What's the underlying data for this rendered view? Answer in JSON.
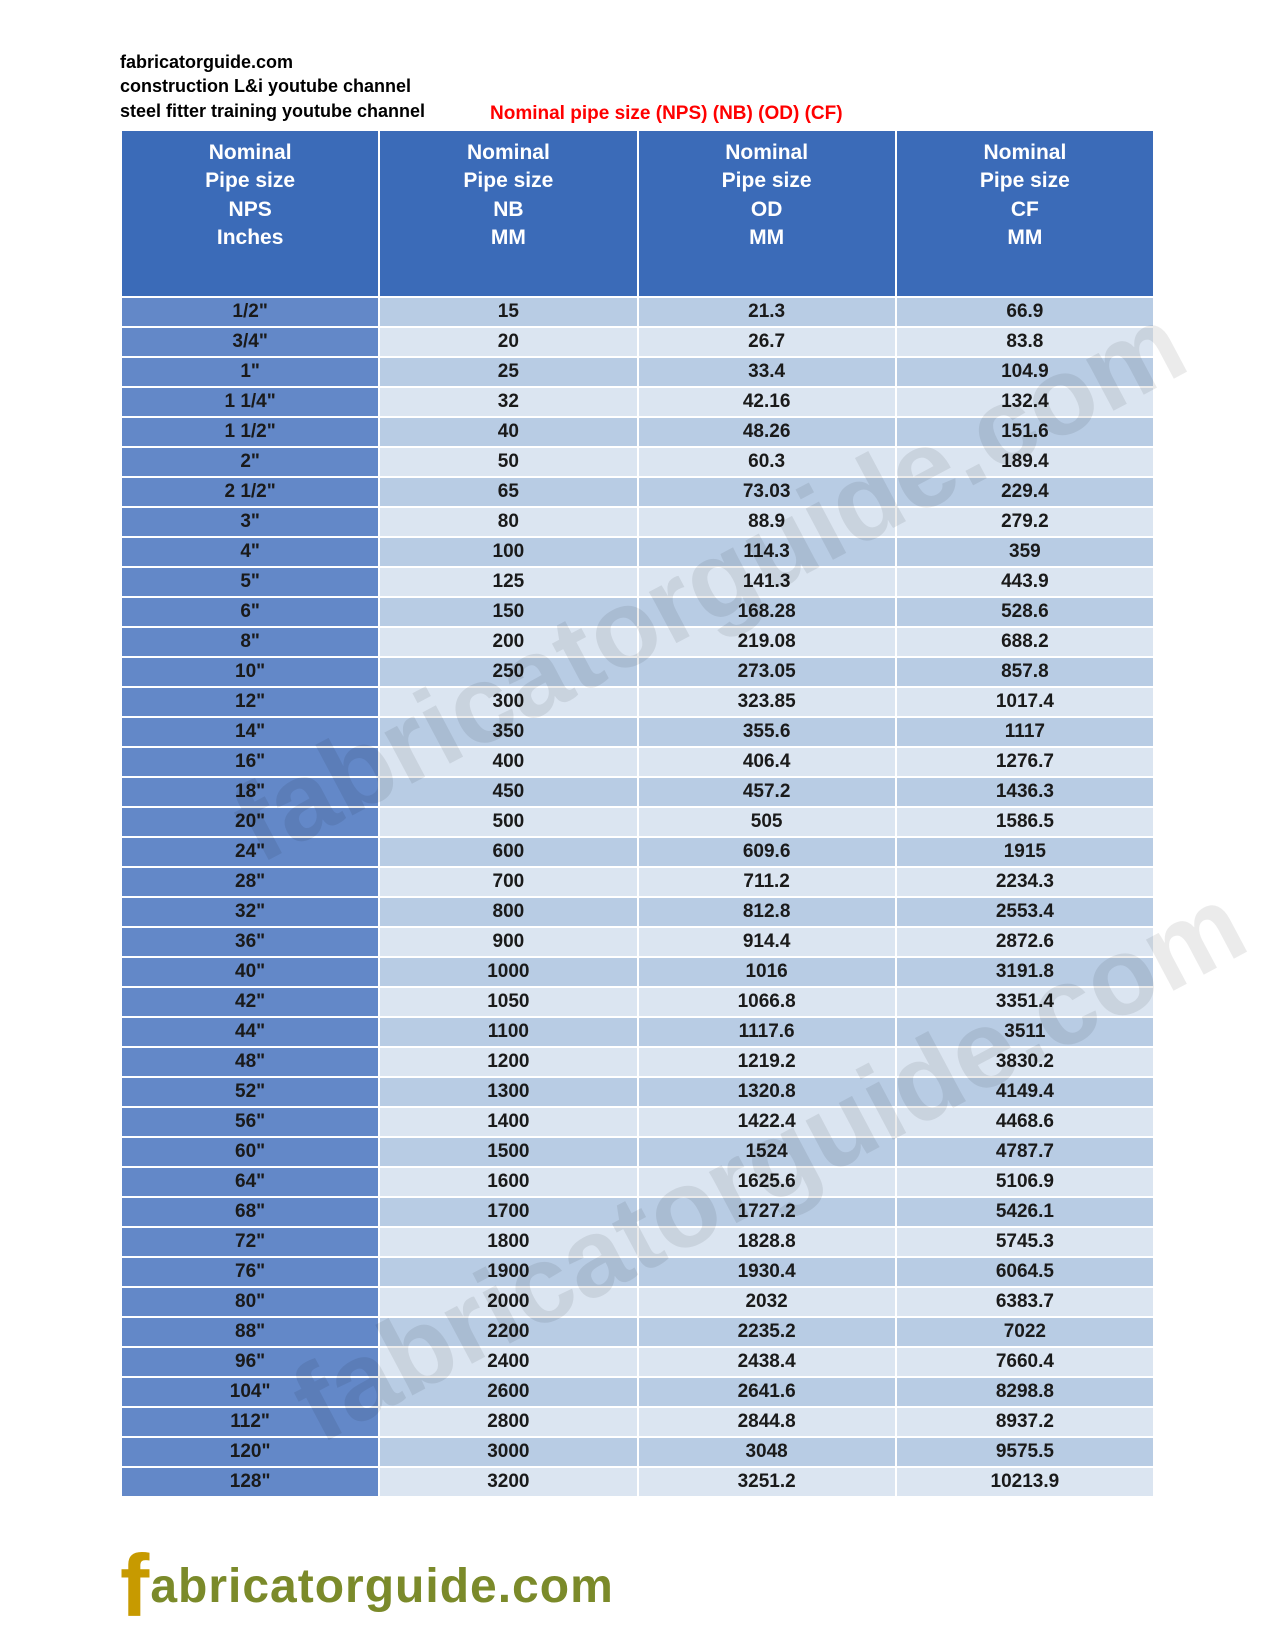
{
  "header": {
    "line1": "fabricatorguide.com",
    "line2": "construction L&i youtube channel",
    "line3": "steel fitter training youtube channel"
  },
  "title_red": "Nominal pipe size (NPS)  (NB)  (OD)  (CF)",
  "watermark_text": "fabricatorguide.com",
  "footer_logo": {
    "f": "f",
    "rest": "abricatorguide.com"
  },
  "table": {
    "columns": [
      {
        "l1": "Nominal",
        "l2": "Pipe size",
        "l3": "NPS",
        "l4": "Inches"
      },
      {
        "l1": "Nominal",
        "l2": "Pipe size",
        "l3": "NB",
        "l4": "MM"
      },
      {
        "l1": "Nominal",
        "l2": "Pipe size",
        "l3": "OD",
        "l4": "MM"
      },
      {
        "l1": "Nominal",
        "l2": "Pipe size",
        "l3": "CF",
        "l4": "MM"
      }
    ],
    "rows": [
      [
        "1/2\"",
        "15",
        "21.3",
        "66.9"
      ],
      [
        "3/4\"",
        "20",
        "26.7",
        "83.8"
      ],
      [
        "1\"",
        "25",
        "33.4",
        "104.9"
      ],
      [
        "1 1/4\"",
        "32",
        "42.16",
        "132.4"
      ],
      [
        "1 1/2\"",
        "40",
        "48.26",
        "151.6"
      ],
      [
        "2\"",
        "50",
        "60.3",
        "189.4"
      ],
      [
        "2 1/2\"",
        "65",
        "73.03",
        "229.4"
      ],
      [
        "3\"",
        "80",
        "88.9",
        "279.2"
      ],
      [
        "4\"",
        "100",
        "114.3",
        "359"
      ],
      [
        "5\"",
        "125",
        "141.3",
        "443.9"
      ],
      [
        "6\"",
        "150",
        "168.28",
        "528.6"
      ],
      [
        "8\"",
        "200",
        "219.08",
        "688.2"
      ],
      [
        "10\"",
        "250",
        "273.05",
        "857.8"
      ],
      [
        "12\"",
        "300",
        "323.85",
        "1017.4"
      ],
      [
        "14\"",
        "350",
        "355.6",
        "1117"
      ],
      [
        "16\"",
        "400",
        "406.4",
        "1276.7"
      ],
      [
        "18\"",
        "450",
        "457.2",
        "1436.3"
      ],
      [
        "20\"",
        "500",
        "505",
        "1586.5"
      ],
      [
        "24\"",
        "600",
        "609.6",
        "1915"
      ],
      [
        "28\"",
        "700",
        "711.2",
        "2234.3"
      ],
      [
        "32\"",
        "800",
        "812.8",
        "2553.4"
      ],
      [
        "36\"",
        "900",
        "914.4",
        "2872.6"
      ],
      [
        "40\"",
        "1000",
        "1016",
        "3191.8"
      ],
      [
        "42\"",
        "1050",
        "1066.8",
        "3351.4"
      ],
      [
        "44\"",
        "1100",
        "1117.6",
        "3511"
      ],
      [
        "48\"",
        "1200",
        "1219.2",
        "3830.2"
      ],
      [
        "52\"",
        "1300",
        "1320.8",
        "4149.4"
      ],
      [
        "56\"",
        "1400",
        "1422.4",
        "4468.6"
      ],
      [
        "60\"",
        "1500",
        "1524",
        "4787.7"
      ],
      [
        "64\"",
        "1600",
        "1625.6",
        "5106.9"
      ],
      [
        "68\"",
        "1700",
        "1727.2",
        "5426.1"
      ],
      [
        "72\"",
        "1800",
        "1828.8",
        "5745.3"
      ],
      [
        "76\"",
        "1900",
        "1930.4",
        "6064.5"
      ],
      [
        "80\"",
        "2000",
        "2032",
        "6383.7"
      ],
      [
        "88\"",
        "2200",
        "2235.2",
        "7022"
      ],
      [
        "96\"",
        "2400",
        "2438.4",
        "7660.4"
      ],
      [
        "104\"",
        "2600",
        "2641.6",
        "8298.8"
      ],
      [
        "112\"",
        "2800",
        "2844.8",
        "8937.2"
      ],
      [
        "120\"",
        "3000",
        "3048",
        "9575.5"
      ],
      [
        "128\"",
        "3200",
        "3251.2",
        "10213.9"
      ]
    ],
    "header_bg": "#3b6bb8",
    "header_fg": "#ffffff",
    "col0_bg": "#6388c8",
    "row_even_bg": "#b8cce4",
    "row_odd_bg": "#dbe5f1",
    "border_color": "#ffffff",
    "font_size_body": 19,
    "font_size_header": 21
  }
}
